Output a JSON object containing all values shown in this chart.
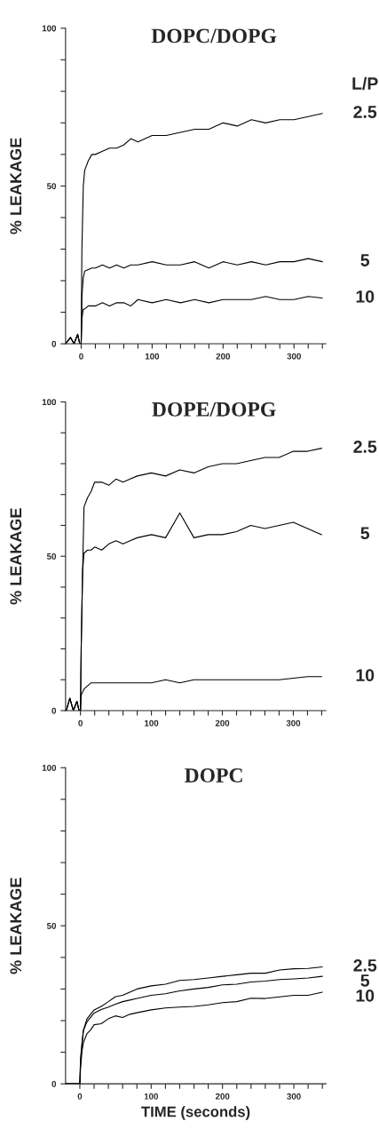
{
  "chart_data": [
    {
      "type": "line",
      "title": "DOPC/DOPG",
      "ylabel": "% LEAKAGE",
      "legend_title": "L/P",
      "xlim": [
        -22,
        345
      ],
      "ylim": [
        0,
        100
      ],
      "xticks": [
        0,
        {
          "value": 20,
          "label": null
        },
        {
          "value": 40,
          "label": null
        },
        {
          "value": 60,
          "label": null
        },
        {
          "value": 80,
          "label": null
        },
        100,
        {
          "value": 120,
          "label": null
        },
        {
          "value": 140,
          "label": null
        },
        {
          "value": 160,
          "label": null
        },
        {
          "value": 180,
          "label": null
        },
        200,
        {
          "value": 220,
          "label": null
        },
        {
          "value": 240,
          "label": null
        },
        {
          "value": 260,
          "label": null
        },
        {
          "value": 280,
          "label": null
        },
        300,
        {
          "value": 320,
          "label": null
        },
        {
          "value": 340,
          "label": null
        }
      ],
      "yticks": [
        0,
        {
          "value": 10,
          "label": null
        },
        {
          "value": 20,
          "label": null
        },
        {
          "value": 30,
          "label": null
        },
        {
          "value": 40,
          "label": null
        },
        50,
        {
          "value": 60,
          "label": null
        },
        {
          "value": 70,
          "label": null
        },
        {
          "value": 80,
          "label": null
        },
        {
          "value": 90,
          "label": null
        },
        100
      ],
      "series": [
        {
          "name": "2.5",
          "color": "#000000",
          "x": [
            -22,
            -15,
            -10,
            -5,
            -2,
            0,
            1,
            3,
            5,
            10,
            15,
            20,
            30,
            40,
            50,
            60,
            70,
            80,
            100,
            120,
            140,
            160,
            180,
            200,
            220,
            240,
            260,
            280,
            300,
            320,
            340
          ],
          "values": [
            0,
            2,
            0,
            3,
            0,
            0,
            30,
            50,
            55,
            58,
            60,
            60,
            61,
            62,
            62,
            63,
            65,
            64,
            66,
            66,
            67,
            68,
            68,
            70,
            69,
            71,
            70,
            71,
            71,
            72,
            73
          ]
        },
        {
          "name": "5",
          "color": "#000000",
          "x": [
            -22,
            -15,
            -10,
            -5,
            -2,
            0,
            1,
            3,
            5,
            10,
            15,
            20,
            30,
            40,
            50,
            60,
            70,
            80,
            100,
            120,
            140,
            160,
            180,
            200,
            220,
            240,
            260,
            280,
            300,
            320,
            340
          ],
          "values": [
            0,
            2,
            0,
            3,
            0,
            0,
            15,
            21,
            23,
            23.5,
            24,
            24,
            25,
            24,
            25,
            24,
            25,
            25,
            26,
            25,
            25,
            26,
            24,
            26,
            25,
            26,
            25,
            26,
            26,
            27,
            26
          ]
        },
        {
          "name": "10",
          "color": "#000000",
          "x": [
            -22,
            -15,
            -10,
            -5,
            -2,
            0,
            1,
            3,
            5,
            10,
            15,
            20,
            30,
            40,
            50,
            60,
            70,
            80,
            100,
            120,
            140,
            160,
            180,
            200,
            220,
            240,
            260,
            280,
            300,
            320,
            340
          ],
          "values": [
            0,
            2,
            0,
            3,
            0,
            0,
            8,
            11,
            11,
            12,
            12,
            12,
            13,
            12,
            13,
            13,
            12,
            14,
            13,
            14,
            13,
            14,
            13,
            14,
            14,
            14,
            15,
            14,
            14,
            15,
            14.5
          ]
        }
      ]
    },
    {
      "type": "line",
      "title": "DOPE/DOPG",
      "ylabel": "% LEAKAGE",
      "xlim": [
        -21,
        346
      ],
      "ylim": [
        0,
        100
      ],
      "xticks": [
        0,
        {
          "value": 20,
          "label": null
        },
        {
          "value": 40,
          "label": null
        },
        {
          "value": 60,
          "label": null
        },
        {
          "value": 80,
          "label": null
        },
        100,
        {
          "value": 120,
          "label": null
        },
        {
          "value": 140,
          "label": null
        },
        {
          "value": 160,
          "label": null
        },
        {
          "value": 180,
          "label": null
        },
        200,
        {
          "value": 220,
          "label": null
        },
        {
          "value": 240,
          "label": null
        },
        {
          "value": 260,
          "label": null
        },
        {
          "value": 280,
          "label": null
        },
        300,
        {
          "value": 320,
          "label": null
        },
        {
          "value": 340,
          "label": null
        }
      ],
      "yticks": [
        0,
        {
          "value": 10,
          "label": null
        },
        {
          "value": 20,
          "label": null
        },
        {
          "value": 30,
          "label": null
        },
        {
          "value": 40,
          "label": null
        },
        50,
        {
          "value": 60,
          "label": null
        },
        {
          "value": 70,
          "label": null
        },
        {
          "value": 80,
          "label": null
        },
        {
          "value": 90,
          "label": null
        },
        100
      ],
      "series": [
        {
          "name": "2.5",
          "color": "#000000",
          "x": [
            -20,
            -15,
            -10,
            -5,
            -2,
            0,
            1,
            3,
            5,
            10,
            15,
            20,
            30,
            40,
            50,
            60,
            70,
            80,
            100,
            120,
            140,
            160,
            180,
            200,
            220,
            240,
            260,
            280,
            300,
            320,
            340
          ],
          "values": [
            0,
            4,
            0,
            3,
            0,
            0,
            20,
            45,
            66,
            69,
            71,
            74,
            74,
            73,
            75,
            74,
            75,
            76,
            77,
            76,
            78,
            77,
            79,
            80,
            80,
            81,
            82,
            82,
            84,
            84,
            85
          ]
        },
        {
          "name": "5",
          "color": "#000000",
          "x": [
            -20,
            -15,
            -10,
            -5,
            -2,
            0,
            1,
            3,
            5,
            10,
            15,
            20,
            30,
            40,
            50,
            60,
            70,
            80,
            100,
            120,
            140,
            160,
            180,
            200,
            220,
            240,
            260,
            280,
            300,
            320,
            340
          ],
          "values": [
            0,
            4,
            0,
            3,
            0,
            0,
            20,
            45,
            51,
            52,
            52,
            53,
            52,
            54,
            55,
            54,
            55,
            56,
            57,
            56,
            64,
            56,
            57,
            57,
            58,
            60,
            59,
            60,
            61,
            59,
            57
          ]
        },
        {
          "name": "10",
          "color": "#000000",
          "x": [
            -20,
            -15,
            -10,
            -5,
            -2,
            0,
            1,
            3,
            5,
            10,
            15,
            20,
            30,
            40,
            50,
            60,
            70,
            80,
            100,
            120,
            140,
            160,
            180,
            200,
            220,
            240,
            260,
            280,
            300,
            320,
            340
          ],
          "values": [
            0,
            4,
            0,
            3,
            0,
            0,
            5,
            6,
            7,
            8,
            9,
            9,
            9,
            9,
            9,
            9,
            9,
            9,
            9,
            10,
            9,
            10,
            10,
            10,
            10,
            10,
            10,
            10,
            10.5,
            11,
            11
          ]
        }
      ]
    },
    {
      "type": "line",
      "title": "DOPC",
      "ylabel": "% LEAKAGE",
      "xlabel": "TIME (seconds)",
      "xlim": [
        -20,
        345
      ],
      "ylim": [
        0,
        100
      ],
      "xticks": [
        0,
        {
          "value": 20,
          "label": null
        },
        {
          "value": 40,
          "label": null
        },
        {
          "value": 60,
          "label": null
        },
        {
          "value": 80,
          "label": null
        },
        100,
        {
          "value": 120,
          "label": null
        },
        {
          "value": 140,
          "label": null
        },
        {
          "value": 160,
          "label": null
        },
        {
          "value": 180,
          "label": null
        },
        200,
        {
          "value": 220,
          "label": null
        },
        {
          "value": 240,
          "label": null
        },
        {
          "value": 260,
          "label": null
        },
        {
          "value": 280,
          "label": null
        },
        300,
        {
          "value": 320,
          "label": null
        },
        {
          "value": 340,
          "label": null
        }
      ],
      "yticks": [
        0,
        {
          "value": 10,
          "label": null
        },
        {
          "value": 20,
          "label": null
        },
        {
          "value": 30,
          "label": null
        },
        {
          "value": 40,
          "label": null
        },
        50,
        {
          "value": 60,
          "label": null
        },
        {
          "value": 70,
          "label": null
        },
        {
          "value": 80,
          "label": null
        },
        {
          "value": 90,
          "label": null
        },
        100
      ],
      "series": [
        {
          "name": "2.5",
          "color": "#000000",
          "x": [
            -20,
            -10,
            0,
            1,
            3,
            5,
            10,
            15,
            20,
            30,
            40,
            50,
            60,
            70,
            80,
            100,
            120,
            140,
            160,
            180,
            200,
            220,
            240,
            260,
            280,
            300,
            320,
            340
          ],
          "values": [
            0,
            0,
            0,
            8,
            13,
            17,
            20.5,
            22,
            23.4,
            24.5,
            26,
            27.6,
            28,
            29,
            30,
            31,
            31.5,
            32.7,
            33,
            33.5,
            34,
            34.5,
            35,
            35,
            36,
            36.4,
            36.5,
            37
          ]
        },
        {
          "name": "5",
          "color": "#000000",
          "x": [
            -20,
            -10,
            0,
            1,
            3,
            5,
            10,
            15,
            20,
            30,
            40,
            50,
            60,
            70,
            80,
            100,
            120,
            140,
            160,
            180,
            200,
            220,
            240,
            260,
            280,
            300,
            320,
            340
          ],
          "values": [
            0,
            0,
            0,
            7,
            12,
            16.8,
            19.6,
            21,
            22.4,
            23.5,
            24.3,
            25.2,
            26,
            26.5,
            27,
            28,
            28.5,
            29.4,
            30,
            30.5,
            31.3,
            31.5,
            32.2,
            32.5,
            33,
            33.2,
            33.5,
            34
          ]
        },
        {
          "name": "10",
          "color": "#000000",
          "x": [
            -20,
            -10,
            0,
            1,
            3,
            5,
            10,
            15,
            20,
            30,
            40,
            50,
            60,
            70,
            80,
            100,
            120,
            140,
            160,
            180,
            200,
            220,
            240,
            260,
            280,
            300,
            320,
            340
          ],
          "values": [
            0,
            0,
            0,
            5,
            10.3,
            13,
            15.9,
            17,
            18.7,
            19,
            20.6,
            21.5,
            21,
            22,
            22.5,
            23.4,
            24,
            24.3,
            24.5,
            25,
            25.7,
            26,
            27.1,
            27,
            27.5,
            28,
            28,
            29
          ]
        }
      ]
    }
  ]
}
